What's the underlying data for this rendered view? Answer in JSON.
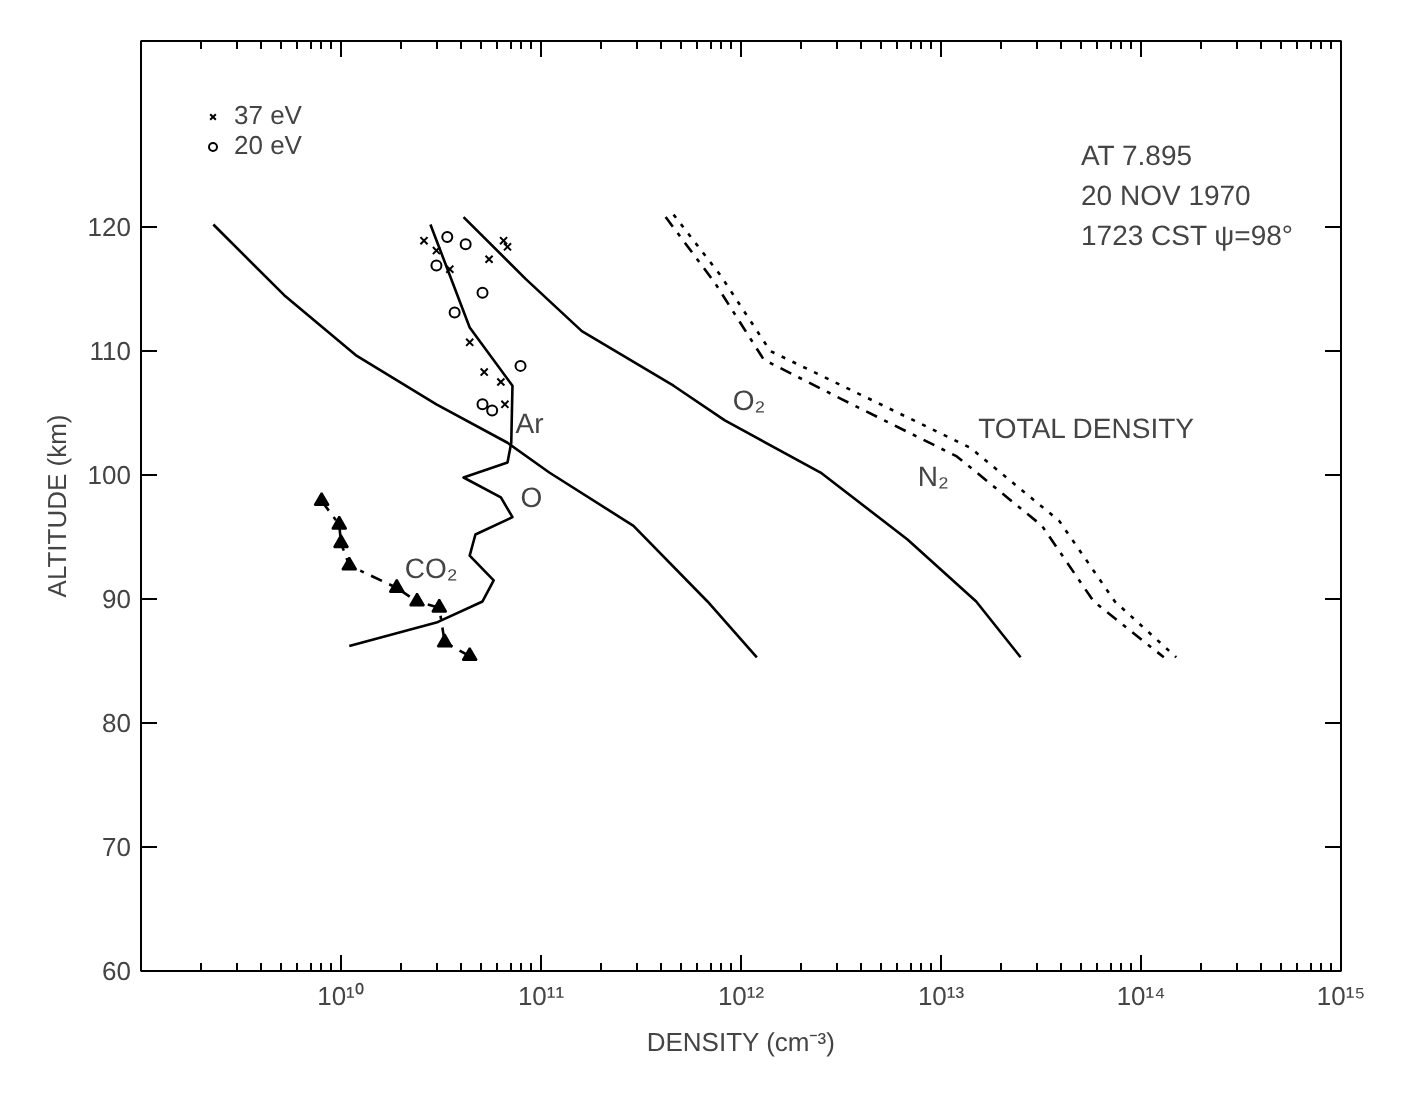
{
  "chart_data": {
    "type": "line",
    "xlabel": "DENSITY (cm⁻³)",
    "ylabel": "ALTITUDE (km)",
    "log": "x",
    "xlim": [
      1000000000.0,
      1000000000000000.0
    ],
    "ylim": [
      60,
      135
    ],
    "xticks": [
      {
        "value": 10000000000.0,
        "label": "10¹⁰"
      },
      {
        "value": 100000000000.0,
        "label": "10¹¹"
      },
      {
        "value": 1000000000000.0,
        "label": "10¹²"
      },
      {
        "value": 10000000000000.0,
        "label": "10¹³"
      },
      {
        "value": 100000000000000.0,
        "label": "10¹⁴"
      },
      {
        "value": 1000000000000000.0,
        "label": "10¹⁵"
      }
    ],
    "yticks": [
      60,
      70,
      80,
      90,
      100,
      110,
      120
    ],
    "grid": false,
    "legend": "top left",
    "series": [
      {
        "name": "Ar",
        "color": "#000000",
        "line_style": "solid",
        "marker": "none",
        "x": [
          2300000000.0,
          5200000000.0,
          12000000000.0,
          30000000000.0,
          68000000000.0,
          110000000000.0,
          290000000000.0,
          680000000000.0,
          1200000000000.0
        ],
        "values": [
          120.2,
          114.5,
          109.6,
          105.7,
          102.6,
          100.2,
          95.9,
          89.8,
          85.3
        ]
      },
      {
        "name": "O",
        "color": "#000000",
        "line_style": "solid",
        "marker": "none",
        "x": [
          28000000000.0,
          44000000000.0,
          72000000000.0,
          71000000000.0,
          68000000000.0,
          41000000000.0,
          63000000000.0,
          72000000000.0,
          47000000000.0,
          44000000000.0,
          58000000000.0,
          51000000000.0,
          30000000000.0,
          11000000000.0
        ],
        "values": [
          120.2,
          111.9,
          107.2,
          102.6,
          101.0,
          99.8,
          98.2,
          96.6,
          95.2,
          93.5,
          91.5,
          89.8,
          88.1,
          86.2
        ]
      },
      {
        "name": "O₂",
        "color": "#000000",
        "line_style": "solid",
        "marker": "none",
        "x": [
          41000000000.0,
          84000000000.0,
          160000000000.0,
          460000000000.0,
          830000000000.0,
          2500000000000.0,
          6800000000000.0,
          15000000000000.0,
          25000000000000.0
        ],
        "values": [
          120.8,
          115.8,
          111.6,
          107.2,
          104.4,
          100.2,
          94.8,
          89.8,
          85.3
        ]
      },
      {
        "name": "CO₂",
        "color": "#000000",
        "line_style": "dashed",
        "marker": "triangle",
        "x": [
          8000000000.0,
          9800000000.0,
          10000000000.0,
          11000000000.0,
          19000000000.0,
          24000000000.0,
          31000000000.0,
          33000000000.0,
          44000000000.0
        ],
        "values": [
          97.9,
          96.0,
          94.5,
          92.7,
          90.9,
          89.8,
          89.3,
          86.5,
          85.4
        ]
      },
      {
        "name": "N₂",
        "color": "#000000",
        "line_style": "dashed",
        "marker": "none",
        "x": [
          420000000000.0,
          740000000000.0,
          1300000000000.0,
          3200000000000.0,
          12000000000000.0,
          32000000000000.0,
          58000000000000.0,
          130000000000000.0
        ],
        "values": [
          120.8,
          115.5,
          109.3,
          106.1,
          101.5,
          95.9,
          89.8,
          85.3
        ]
      },
      {
        "name": "TOTAL DENSITY",
        "color": "#000000",
        "line_style": "dotted",
        "marker": "none",
        "x": [
          460000000000.0,
          790000000000.0,
          1400000000000.0,
          3500000000000.0,
          14000000000000.0,
          39000000000000.0,
          74000000000000.0,
          150000000000000.0
        ],
        "values": [
          121.0,
          116.1,
          110.0,
          106.9,
          102.2,
          96.3,
          89.8,
          85.3
        ]
      },
      {
        "type": "scatter",
        "name": "37 eV",
        "color": "#000000",
        "marker": "cross",
        "x": [
          26000000000.0,
          30000000000.0,
          35000000000.0,
          44000000000.0,
          52000000000.0,
          66000000000.0,
          63000000000.0,
          65000000000.0,
          68000000000.0,
          55000000000.0
        ],
        "values": [
          118.9,
          118.1,
          116.6,
          110.7,
          108.3,
          105.7,
          107.5,
          118.9,
          118.4,
          117.4
        ]
      },
      {
        "type": "scatter",
        "name": "20 eV",
        "color": "#000000",
        "marker": "circle",
        "x": [
          30000000000.0,
          51000000000.0,
          37000000000.0,
          79000000000.0,
          51000000000.0,
          57000000000.0,
          42000000000.0,
          34000000000.0
        ],
        "values": [
          116.9,
          114.7,
          113.1,
          108.8,
          105.7,
          105.2,
          118.6,
          119.2
        ]
      }
    ],
    "annotations": [
      "AT 7.895",
      "20 NOV 1970",
      "1723 CST ψ=98°"
    ]
  }
}
